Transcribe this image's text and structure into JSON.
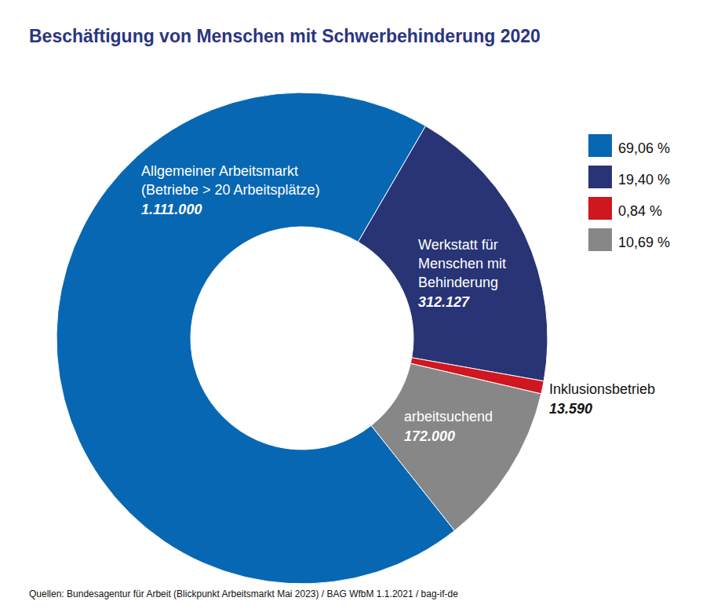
{
  "chart_data": {
    "type": "donut",
    "title": "Beschäftigung von Menschen mit Schwerbehinderung 2020",
    "categories": [
      "Allgemeiner Arbeitsmarkt (Betriebe > 20 Arbeitsplätze)",
      "Werkstatt für Menschen mit Behinderung",
      "Inklusionsbetrieb",
      "arbeitsuchend"
    ],
    "values": [
      1111000,
      312127,
      13590,
      172000
    ],
    "value_labels": [
      "1.111.000",
      "312.127",
      "13.590",
      "172.000"
    ],
    "colors": [
      "#0767b3",
      "#283475",
      "#d0161f",
      "#878787"
    ],
    "percentages": [
      {
        "value": 69.06,
        "label": "69,06 %"
      },
      {
        "value": 19.4,
        "label": "19,40 %"
      },
      {
        "value": 0.84,
        "label": "0,84 %"
      },
      {
        "value": 10.69,
        "label": "10,69 %"
      }
    ],
    "data_labels": true,
    "legend": "right",
    "source": "Quellen: Bundesagentur für Arbeit (Blickpunkt Arbeitsmarkt Mai 2023) / BAG WfbM 1.1.2021 / bag-if-de"
  }
}
